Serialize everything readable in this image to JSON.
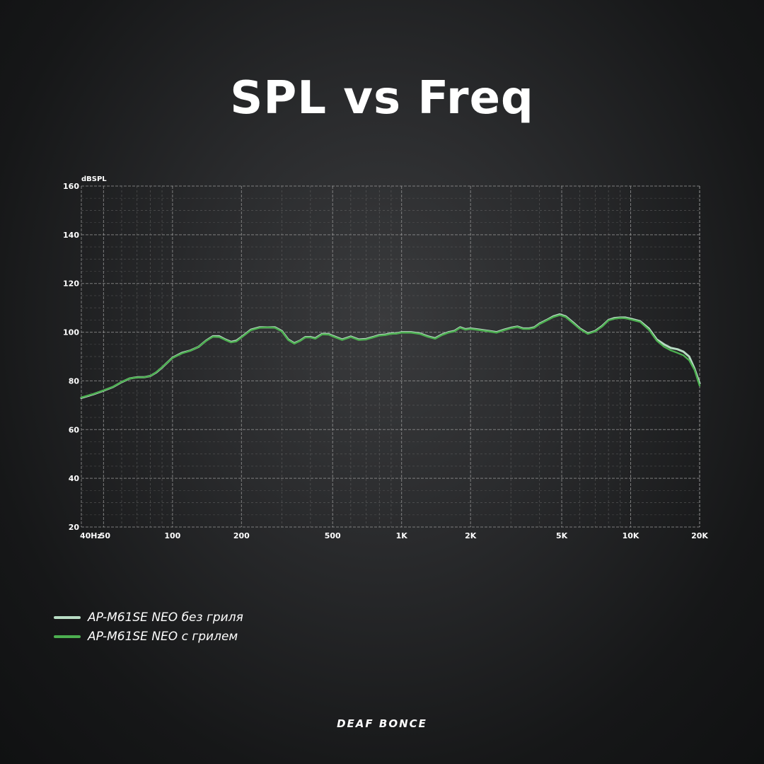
{
  "title": "SPL vs Freq",
  "brand": "DEAF BONCE",
  "colors": {
    "grid_major": "#9a9a9a",
    "grid_minor": "#6e6e6e",
    "tick_text": "#ffffff"
  },
  "chart_data": {
    "type": "line",
    "title": "SPL vs Freq",
    "ylabel": "dBSPL",
    "xlabel": "",
    "x_scale": "log",
    "xlim": [
      40,
      20000
    ],
    "ylim": [
      20,
      160
    ],
    "grid": true,
    "legend_position": "bottom-left",
    "x_ticks": [
      {
        "value": 40,
        "label": "40Hz"
      },
      {
        "value": 50,
        "label": "50"
      },
      {
        "value": 100,
        "label": "100"
      },
      {
        "value": 200,
        "label": "200"
      },
      {
        "value": 500,
        "label": "500"
      },
      {
        "value": 1000,
        "label": "1K"
      },
      {
        "value": 2000,
        "label": "2K"
      },
      {
        "value": 5000,
        "label": "5K"
      },
      {
        "value": 10000,
        "label": "10K"
      },
      {
        "value": 20000,
        "label": "20K"
      }
    ],
    "y_ticks": [
      20,
      40,
      60,
      80,
      100,
      120,
      140,
      160
    ],
    "series": [
      {
        "name": "AP-M61SE NEO без гриля",
        "color": "#b8dcc4",
        "points": [
          [
            40,
            73
          ],
          [
            45,
            74.5
          ],
          [
            50,
            76
          ],
          [
            55,
            77.5
          ],
          [
            60,
            79.5
          ],
          [
            65,
            81
          ],
          [
            70,
            81.5
          ],
          [
            75,
            81.5
          ],
          [
            80,
            82
          ],
          [
            85,
            83.5
          ],
          [
            90,
            85.5
          ],
          [
            100,
            89.5
          ],
          [
            110,
            91.5
          ],
          [
            120,
            92.5
          ],
          [
            130,
            94
          ],
          [
            140,
            96.5
          ],
          [
            150,
            98.3
          ],
          [
            160,
            98.3
          ],
          [
            170,
            97
          ],
          [
            180,
            96
          ],
          [
            190,
            96.5
          ],
          [
            200,
            98
          ],
          [
            220,
            101
          ],
          [
            240,
            102
          ],
          [
            260,
            102
          ],
          [
            280,
            102
          ],
          [
            300,
            100.5
          ],
          [
            320,
            97
          ],
          [
            340,
            95.5
          ],
          [
            360,
            96.5
          ],
          [
            380,
            98
          ],
          [
            400,
            98
          ],
          [
            420,
            97.5
          ],
          [
            450,
            99.3
          ],
          [
            480,
            99.2
          ],
          [
            500,
            98.5
          ],
          [
            550,
            97
          ],
          [
            600,
            98.2
          ],
          [
            650,
            97
          ],
          [
            700,
            97.2
          ],
          [
            750,
            98
          ],
          [
            800,
            98.8
          ],
          [
            850,
            99
          ],
          [
            900,
            99.5
          ],
          [
            950,
            99.5
          ],
          [
            1000,
            100
          ],
          [
            1100,
            100
          ],
          [
            1200,
            99.5
          ],
          [
            1300,
            98.3
          ],
          [
            1400,
            97.5
          ],
          [
            1500,
            99
          ],
          [
            1600,
            100
          ],
          [
            1700,
            100.5
          ],
          [
            1800,
            102
          ],
          [
            1900,
            101.2
          ],
          [
            2000,
            101.5
          ],
          [
            2200,
            101
          ],
          [
            2400,
            100.5
          ],
          [
            2600,
            100
          ],
          [
            2800,
            101
          ],
          [
            3000,
            101.8
          ],
          [
            3200,
            102.3
          ],
          [
            3400,
            101.5
          ],
          [
            3600,
            101.5
          ],
          [
            3800,
            102
          ],
          [
            4000,
            103.5
          ],
          [
            4300,
            105
          ],
          [
            4600,
            106.5
          ],
          [
            4900,
            107.3
          ],
          [
            5200,
            106.5
          ],
          [
            5600,
            104
          ],
          [
            6000,
            101.5
          ],
          [
            6500,
            99.5
          ],
          [
            7000,
            100.5
          ],
          [
            7500,
            102.5
          ],
          [
            8000,
            105
          ],
          [
            8500,
            105.8
          ],
          [
            9000,
            106
          ],
          [
            9500,
            106
          ],
          [
            10000,
            105.5
          ],
          [
            11000,
            104.5
          ],
          [
            12000,
            101.5
          ],
          [
            13000,
            97
          ],
          [
            14000,
            95
          ],
          [
            15000,
            93.5
          ],
          [
            16000,
            93
          ],
          [
            17000,
            92
          ],
          [
            18000,
            90
          ],
          [
            19000,
            85
          ],
          [
            20000,
            79
          ]
        ]
      },
      {
        "name": "AP-M61SE NEO с грилем",
        "color": "#4caf50",
        "points": [
          [
            40,
            73.2
          ],
          [
            45,
            74.6
          ],
          [
            50,
            76.1
          ],
          [
            55,
            77.6
          ],
          [
            60,
            79.6
          ],
          [
            65,
            81
          ],
          [
            70,
            81.4
          ],
          [
            75,
            81.5
          ],
          [
            80,
            82
          ],
          [
            85,
            83.6
          ],
          [
            90,
            85.6
          ],
          [
            100,
            89.4
          ],
          [
            110,
            91.3
          ],
          [
            120,
            92.4
          ],
          [
            130,
            94
          ],
          [
            140,
            96.4
          ],
          [
            150,
            98.1
          ],
          [
            160,
            98
          ],
          [
            170,
            96.8
          ],
          [
            180,
            95.8
          ],
          [
            190,
            96.2
          ],
          [
            200,
            97.8
          ],
          [
            220,
            100.8
          ],
          [
            240,
            101.8
          ],
          [
            260,
            102
          ],
          [
            280,
            101.8
          ],
          [
            300,
            100.3
          ],
          [
            320,
            96.8
          ],
          [
            340,
            95.3
          ],
          [
            360,
            96.4
          ],
          [
            380,
            97.8
          ],
          [
            400,
            97.8
          ],
          [
            420,
            97.3
          ],
          [
            450,
            99.1
          ],
          [
            480,
            99
          ],
          [
            500,
            98.3
          ],
          [
            550,
            96.8
          ],
          [
            600,
            98
          ],
          [
            650,
            96.8
          ],
          [
            700,
            97
          ],
          [
            750,
            97.8
          ],
          [
            800,
            98.6
          ],
          [
            850,
            98.8
          ],
          [
            900,
            99.3
          ],
          [
            950,
            99.4
          ],
          [
            1000,
            99.8
          ],
          [
            1100,
            99.8
          ],
          [
            1200,
            99.3
          ],
          [
            1300,
            98.1
          ],
          [
            1400,
            97.3
          ],
          [
            1500,
            98.8
          ],
          [
            1600,
            99.8
          ],
          [
            1700,
            100.3
          ],
          [
            1800,
            101.8
          ],
          [
            1900,
            101
          ],
          [
            2000,
            101.3
          ],
          [
            2200,
            100.8
          ],
          [
            2400,
            100.3
          ],
          [
            2600,
            99.8
          ],
          [
            2800,
            100.8
          ],
          [
            3000,
            101.6
          ],
          [
            3200,
            102.1
          ],
          [
            3400,
            101.3
          ],
          [
            3600,
            101.3
          ],
          [
            3800,
            101.8
          ],
          [
            4000,
            103.3
          ],
          [
            4300,
            104.8
          ],
          [
            4600,
            106.2
          ],
          [
            4900,
            107
          ],
          [
            5200,
            106.2
          ],
          [
            5600,
            103.7
          ],
          [
            6000,
            101.3
          ],
          [
            6500,
            99.3
          ],
          [
            7000,
            100.3
          ],
          [
            7500,
            102.3
          ],
          [
            8000,
            104.8
          ],
          [
            8500,
            105.5
          ],
          [
            9000,
            105.8
          ],
          [
            9500,
            105.7
          ],
          [
            10000,
            105.2
          ],
          [
            11000,
            104.2
          ],
          [
            12000,
            101
          ],
          [
            13000,
            96.5
          ],
          [
            14000,
            94
          ],
          [
            15000,
            92.5
          ],
          [
            16000,
            91.5
          ],
          [
            17000,
            90.5
          ],
          [
            18000,
            88.5
          ],
          [
            19000,
            84.5
          ],
          [
            20000,
            78
          ]
        ]
      }
    ]
  }
}
